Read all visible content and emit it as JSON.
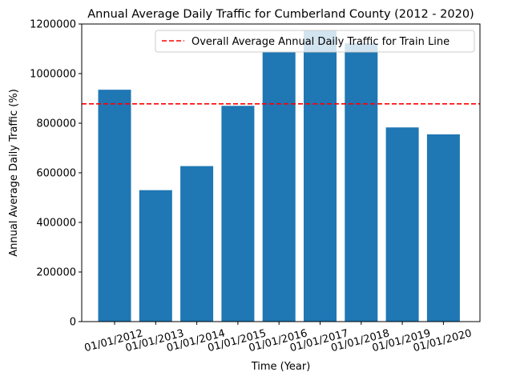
{
  "chart_data": {
    "type": "bar",
    "title": "Annual Average Daily Traffic for Cumberland County (2012 - 2020)",
    "xlabel": "Time (Year)",
    "ylabel": "Annual Average Daily Traffic (%)",
    "categories": [
      "01/01/2012",
      "01/01/2013",
      "01/01/2014",
      "01/01/2015",
      "01/01/2016",
      "01/01/2017",
      "01/01/2018",
      "01/01/2019",
      "01/01/2020"
    ],
    "values": [
      935000,
      530000,
      627000,
      870000,
      1088000,
      1175000,
      1122000,
      783000,
      755000
    ],
    "ylim": [
      0,
      1200000
    ],
    "yticks": [
      0,
      200000,
      400000,
      600000,
      800000,
      1000000,
      1200000
    ],
    "ytick_labels": [
      "0",
      "200000",
      "400000",
      "600000",
      "800000",
      "1000000",
      "1200000"
    ],
    "bar_color": "#1f77b4",
    "reference_line": {
      "value": 878000,
      "label": "Overall Average Annual Daily Traffic for Train Line",
      "color": "#ff0000",
      "style": "dashed"
    },
    "legend_position": "top-right",
    "grid": false
  }
}
